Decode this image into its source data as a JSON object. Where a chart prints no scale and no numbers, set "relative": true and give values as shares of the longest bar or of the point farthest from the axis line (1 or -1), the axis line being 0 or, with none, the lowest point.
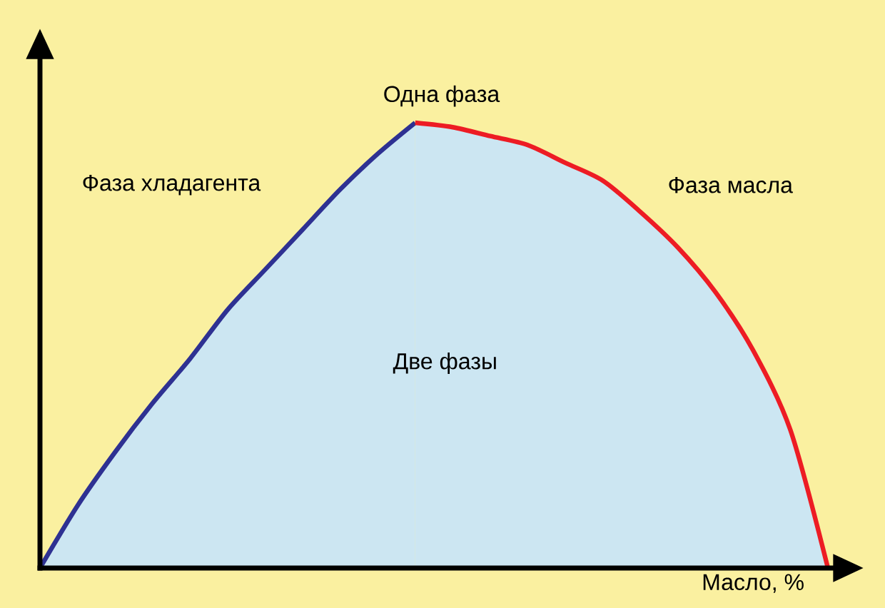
{
  "chart_data": {
    "type": "area",
    "relative": true,
    "xlabel": "Масло, %",
    "categories": [
      null,
      null,
      null,
      null,
      null,
      null,
      null,
      null,
      null,
      null,
      null,
      null,
      null,
      null,
      null,
      null,
      null,
      null,
      null,
      null,
      null,
      null
    ],
    "series": [
      {
        "color": "#2e3192",
        "values": [
          0,
          0.14,
          0.26,
          0.37,
          0.47,
          0.58,
          0.67,
          0.76,
          0.85,
          0.93,
          1.0,
          null,
          null,
          null,
          null,
          null,
          null,
          null,
          null,
          null,
          null,
          null
        ]
      },
      {
        "color": "#ed1c24",
        "values": [
          null,
          null,
          null,
          null,
          null,
          null,
          null,
          null,
          null,
          null,
          1.0,
          0.99,
          0.97,
          0.95,
          0.91,
          0.87,
          0.8,
          0.72,
          0.62,
          0.49,
          0.31,
          0
        ]
      }
    ],
    "annotations": [
      "Одна фаза",
      "Фаза хладагента",
      "Фаза масла",
      "Две фазы"
    ]
  }
}
